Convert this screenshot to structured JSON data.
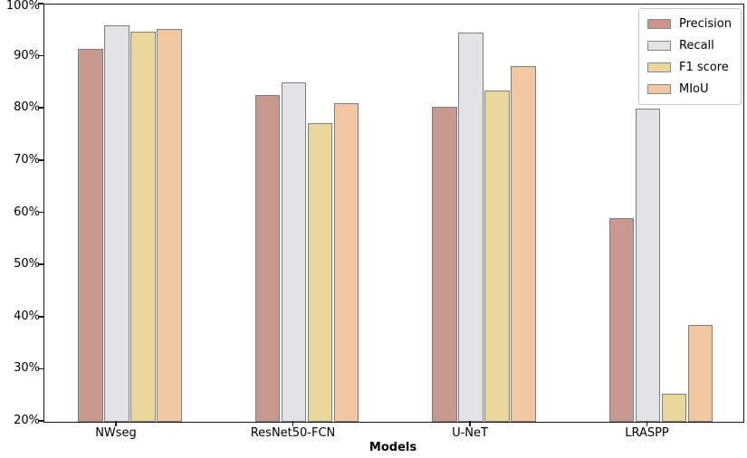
{
  "chart_data": {
    "type": "bar",
    "title": "",
    "xlabel": "Models",
    "ylabel": "",
    "ylim": [
      20,
      100
    ],
    "yticks": [
      20,
      30,
      40,
      50,
      60,
      70,
      80,
      90,
      100
    ],
    "ytick_suffix": "%",
    "grid": false,
    "legend_position": "upper right",
    "bar_edge_color": "#7f7f7f",
    "axis_color": "#1a1a1a",
    "categories": [
      "NWseg",
      "ResNet50-FCN",
      "U-NeT",
      "LRASPP"
    ],
    "series": [
      {
        "name": "Precision",
        "color": "#c8988f",
        "values": [
          91.5,
          82.7,
          80.4,
          59.0
        ]
      },
      {
        "name": "Recall",
        "color": "#e3e2e7",
        "values": [
          96.0,
          85.0,
          94.6,
          80.0
        ]
      },
      {
        "name": "F1 score",
        "color": "#e8d69a",
        "values": [
          94.8,
          77.3,
          83.5,
          25.3
        ]
      },
      {
        "name": "MIoU",
        "color": "#f0c7a1",
        "values": [
          95.4,
          81.0,
          88.2,
          38.5
        ]
      }
    ]
  }
}
